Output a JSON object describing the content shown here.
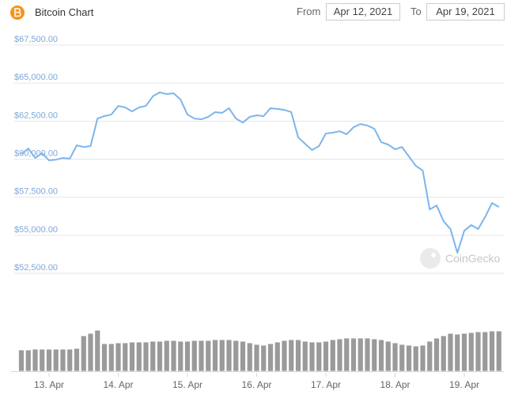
{
  "controls": {
    "from_label": "From",
    "from_date": "Apr 12, 2021",
    "to_label": "To",
    "to_date": "Apr 19, 2021"
  },
  "chart_data": [
    {
      "type": "line",
      "title": "Bitcoin Chart",
      "watermark": "CoinGecko",
      "color": "#7cb5ec",
      "grid": true,
      "x": [
        12.6,
        12.7,
        12.8,
        12.9,
        13.0,
        13.1,
        13.2,
        13.3,
        13.4,
        13.5,
        13.6,
        13.7,
        13.8,
        13.9,
        14.0,
        14.1,
        14.2,
        14.3,
        14.4,
        14.5,
        14.6,
        14.7,
        14.8,
        14.9,
        15.0,
        15.1,
        15.2,
        15.3,
        15.4,
        15.5,
        15.6,
        15.7,
        15.8,
        15.9,
        16.0,
        16.1,
        16.2,
        16.3,
        16.4,
        16.5,
        16.6,
        16.7,
        16.8,
        16.9,
        17.0,
        17.1,
        17.2,
        17.3,
        17.4,
        17.5,
        17.6,
        17.7,
        17.8,
        17.9,
        18.0,
        18.1,
        18.2,
        18.3,
        18.4,
        18.5,
        18.6,
        18.7,
        18.8,
        18.9,
        19.0,
        19.1,
        19.2,
        19.3,
        19.4,
        19.5
      ],
      "values": [
        60340,
        60700,
        60080,
        60390,
        59920,
        59970,
        60080,
        60030,
        60910,
        60800,
        60860,
        62670,
        62830,
        62930,
        63500,
        63400,
        63140,
        63400,
        63500,
        64130,
        64390,
        64280,
        64330,
        63920,
        62930,
        62670,
        62620,
        62780,
        63090,
        63040,
        63350,
        62670,
        62410,
        62780,
        62880,
        62830,
        63350,
        63300,
        63240,
        63090,
        61430,
        61010,
        60600,
        60860,
        61690,
        61740,
        61840,
        61640,
        62100,
        62310,
        62210,
        62000,
        61120,
        60960,
        60650,
        60800,
        60180,
        59560,
        59250,
        56700,
        56960,
        55930,
        55410,
        53850,
        55300,
        55670,
        55410,
        56190,
        57120,
        56860
      ],
      "xlim": [
        12.6,
        19.6
      ],
      "xticks": [
        {
          "value": 13,
          "label": "13. Apr"
        },
        {
          "value": 14,
          "label": "14. Apr"
        },
        {
          "value": 15,
          "label": "15. Apr"
        },
        {
          "value": 16,
          "label": "16. Apr"
        },
        {
          "value": 17,
          "label": "17. Apr"
        },
        {
          "value": 18,
          "label": "18. Apr"
        },
        {
          "value": 19,
          "label": "19. Apr"
        }
      ],
      "ylim": [
        52500,
        67500
      ],
      "yticks": [
        {
          "value": 52500,
          "label": "$52,500.00"
        },
        {
          "value": 55000,
          "label": "$55,000.00"
        },
        {
          "value": 57500,
          "label": "$57,500.00"
        },
        {
          "value": 60000,
          "label": "$60,000.00"
        },
        {
          "value": 62500,
          "label": "$62,500.00"
        },
        {
          "value": 65000,
          "label": "$65,000.00"
        },
        {
          "value": 67500,
          "label": "$67,500.00"
        }
      ]
    },
    {
      "type": "bar",
      "color": "#9a9a9a",
      "ylim": [
        0,
        60
      ],
      "values": [
        27,
        27,
        28,
        28,
        28,
        28,
        28,
        28,
        29,
        45,
        48,
        52,
        35,
        35,
        36,
        36,
        37,
        37,
        37,
        38,
        38,
        39,
        39,
        38,
        38,
        39,
        39,
        39,
        40,
        40,
        40,
        39,
        38,
        36,
        34,
        33,
        35,
        37,
        39,
        40,
        40,
        38,
        37,
        37,
        38,
        40,
        41,
        42,
        42,
        42,
        42,
        41,
        40,
        38,
        36,
        34,
        33,
        32,
        33,
        38,
        42,
        45,
        48,
        47,
        48,
        49,
        50,
        50,
        51,
        51
      ]
    }
  ]
}
